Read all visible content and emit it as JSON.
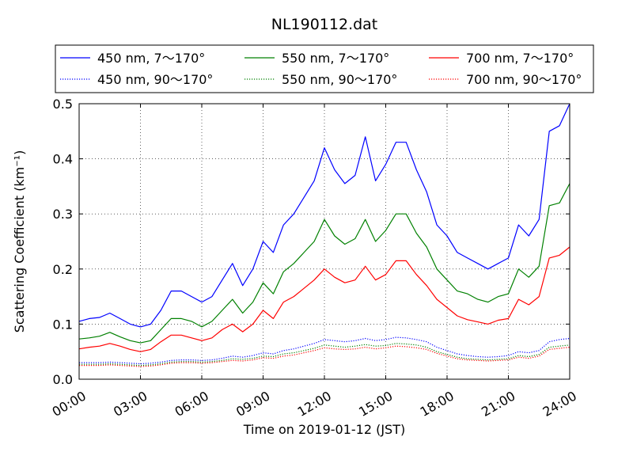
{
  "chart_data": {
    "type": "line",
    "title": "NL190112.dat",
    "xlabel": "Time on 2019-01-12 (JST)",
    "ylabel": "Scattering Coefficient (km⁻¹)",
    "xlim": [
      0,
      24
    ],
    "ylim": [
      0,
      0.5
    ],
    "grid": true,
    "legend_position": "top",
    "x_tick_labels": [
      "00:00",
      "03:00",
      "06:00",
      "09:00",
      "12:00",
      "15:00",
      "18:00",
      "21:00",
      "24:00"
    ],
    "y_tick_labels": [
      "0.0",
      "0.1",
      "0.2",
      "0.3",
      "0.4",
      "0.5"
    ],
    "x": [
      0,
      0.5,
      1,
      1.5,
      2,
      2.5,
      3,
      3.5,
      4,
      4.5,
      5,
      5.5,
      6,
      6.5,
      7,
      7.5,
      8,
      8.5,
      9,
      9.5,
      10,
      10.5,
      11,
      11.5,
      12,
      12.5,
      13,
      13.5,
      14,
      14.5,
      15,
      15.5,
      16,
      16.5,
      17,
      17.5,
      18,
      18.5,
      19,
      19.5,
      20,
      20.5,
      21,
      21.5,
      22,
      22.5,
      23,
      23.5,
      24
    ],
    "series": [
      {
        "name": "450 nm, 7～170°",
        "color": "#0000ff",
        "style": "solid",
        "values": [
          0.105,
          0.11,
          0.112,
          0.12,
          0.11,
          0.1,
          0.095,
          0.1,
          0.125,
          0.16,
          0.16,
          0.15,
          0.14,
          0.15,
          0.18,
          0.21,
          0.17,
          0.2,
          0.25,
          0.23,
          0.28,
          0.3,
          0.33,
          0.36,
          0.42,
          0.38,
          0.355,
          0.37,
          0.44,
          0.36,
          0.39,
          0.43,
          0.43,
          0.38,
          0.34,
          0.28,
          0.26,
          0.23,
          0.22,
          0.21,
          0.2,
          0.21,
          0.22,
          0.28,
          0.26,
          0.29,
          0.45,
          0.46,
          0.5
        ]
      },
      {
        "name": "550 nm, 7～170°",
        "color": "#008000",
        "style": "solid",
        "values": [
          0.073,
          0.075,
          0.078,
          0.085,
          0.077,
          0.07,
          0.066,
          0.07,
          0.09,
          0.11,
          0.11,
          0.105,
          0.095,
          0.105,
          0.125,
          0.145,
          0.12,
          0.14,
          0.175,
          0.155,
          0.195,
          0.21,
          0.23,
          0.25,
          0.29,
          0.26,
          0.245,
          0.255,
          0.29,
          0.25,
          0.27,
          0.3,
          0.3,
          0.265,
          0.24,
          0.2,
          0.18,
          0.16,
          0.155,
          0.145,
          0.14,
          0.15,
          0.155,
          0.2,
          0.185,
          0.205,
          0.315,
          0.32,
          0.355
        ]
      },
      {
        "name": "700 nm, 7～170°",
        "color": "#ff0000",
        "style": "solid",
        "values": [
          0.055,
          0.058,
          0.06,
          0.065,
          0.06,
          0.054,
          0.05,
          0.054,
          0.068,
          0.08,
          0.08,
          0.075,
          0.07,
          0.075,
          0.09,
          0.1,
          0.086,
          0.1,
          0.125,
          0.11,
          0.14,
          0.15,
          0.165,
          0.18,
          0.2,
          0.185,
          0.175,
          0.18,
          0.205,
          0.18,
          0.19,
          0.215,
          0.215,
          0.19,
          0.17,
          0.145,
          0.13,
          0.115,
          0.108,
          0.104,
          0.1,
          0.107,
          0.11,
          0.145,
          0.135,
          0.15,
          0.22,
          0.225,
          0.24
        ]
      },
      {
        "name": "450 nm, 90～170°",
        "color": "#0000ff",
        "style": "dotted",
        "values": [
          0.03,
          0.03,
          0.03,
          0.031,
          0.03,
          0.029,
          0.028,
          0.029,
          0.031,
          0.034,
          0.035,
          0.035,
          0.034,
          0.035,
          0.038,
          0.042,
          0.04,
          0.043,
          0.048,
          0.046,
          0.052,
          0.055,
          0.06,
          0.065,
          0.072,
          0.07,
          0.068,
          0.07,
          0.074,
          0.07,
          0.072,
          0.076,
          0.075,
          0.072,
          0.068,
          0.058,
          0.052,
          0.046,
          0.043,
          0.041,
          0.04,
          0.041,
          0.043,
          0.05,
          0.048,
          0.052,
          0.068,
          0.072,
          0.074
        ]
      },
      {
        "name": "550 nm, 90～170°",
        "color": "#008000",
        "style": "dotted",
        "values": [
          0.027,
          0.027,
          0.027,
          0.028,
          0.027,
          0.026,
          0.025,
          0.026,
          0.028,
          0.031,
          0.032,
          0.032,
          0.031,
          0.032,
          0.034,
          0.037,
          0.036,
          0.038,
          0.042,
          0.041,
          0.046,
          0.048,
          0.052,
          0.056,
          0.062,
          0.06,
          0.058,
          0.06,
          0.063,
          0.06,
          0.061,
          0.065,
          0.064,
          0.062,
          0.058,
          0.05,
          0.045,
          0.04,
          0.037,
          0.036,
          0.035,
          0.036,
          0.037,
          0.043,
          0.041,
          0.045,
          0.058,
          0.06,
          0.062
        ]
      },
      {
        "name": "700 nm, 90～170°",
        "color": "#ff0000",
        "style": "dotted",
        "values": [
          0.025,
          0.025,
          0.025,
          0.026,
          0.025,
          0.024,
          0.023,
          0.024,
          0.026,
          0.029,
          0.03,
          0.03,
          0.029,
          0.03,
          0.032,
          0.034,
          0.033,
          0.035,
          0.039,
          0.038,
          0.042,
          0.044,
          0.048,
          0.052,
          0.057,
          0.055,
          0.054,
          0.055,
          0.058,
          0.055,
          0.057,
          0.06,
          0.059,
          0.057,
          0.054,
          0.047,
          0.042,
          0.037,
          0.035,
          0.034,
          0.033,
          0.034,
          0.035,
          0.04,
          0.038,
          0.042,
          0.054,
          0.056,
          0.058
        ]
      }
    ]
  }
}
